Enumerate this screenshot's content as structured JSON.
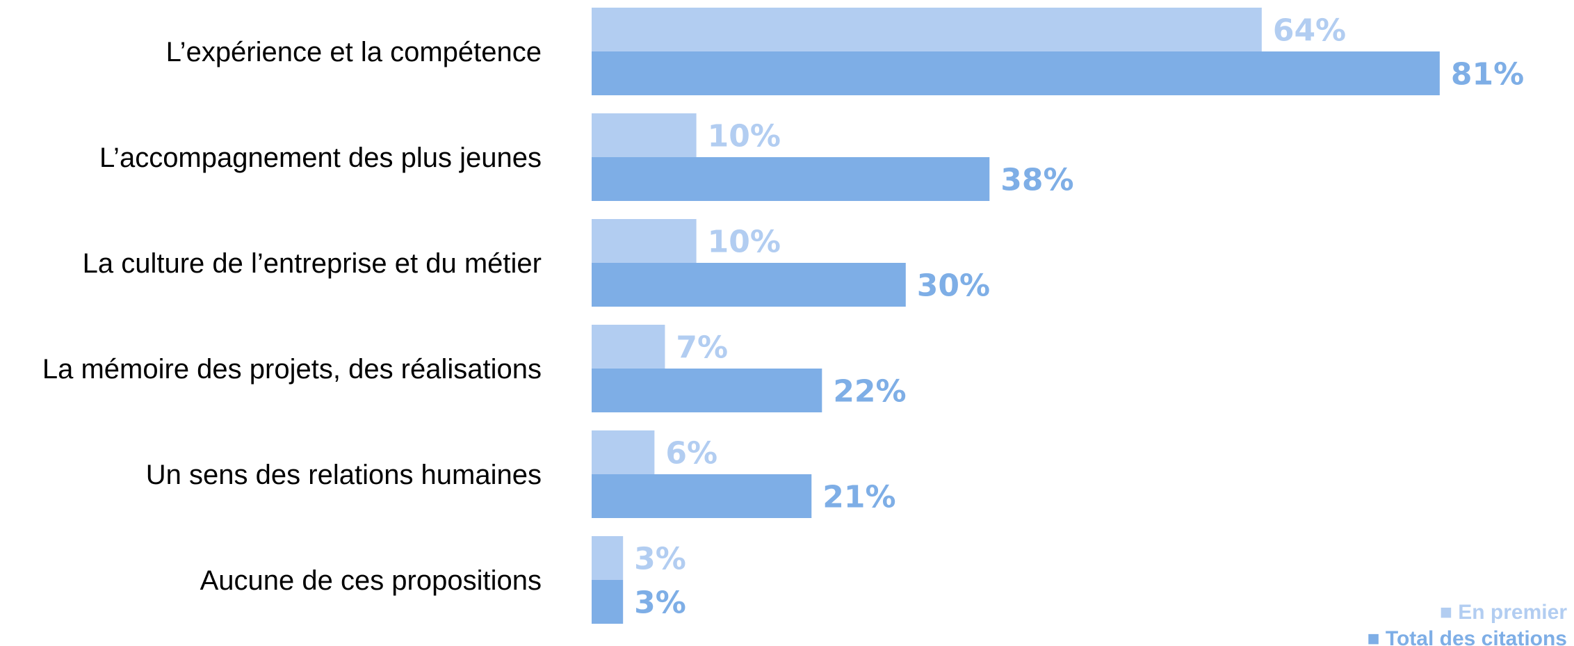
{
  "chart_data": {
    "type": "bar",
    "orientation": "horizontal",
    "categories": [
      "L’expérience et la compétence",
      "L’accompagnement des plus jeunes",
      "La culture de l’entreprise et du métier",
      "La mémoire des projets, des réalisations",
      "Un sens des relations humaines",
      "Aucune de ces propositions"
    ],
    "series": [
      {
        "name": "En premier",
        "values": [
          64,
          10,
          10,
          7,
          6,
          3
        ],
        "labels": [
          "64%",
          "10%",
          "10%",
          "7%",
          "6%",
          "3%"
        ],
        "color": "#b2cdf1"
      },
      {
        "name": "Total des citations",
        "values": [
          81,
          38,
          30,
          22,
          21,
          3
        ],
        "labels": [
          "81%",
          "38%",
          "30%",
          "22%",
          "21%",
          "3%"
        ],
        "color": "#7eaee6"
      }
    ],
    "xlim": [
      0,
      100
    ],
    "grid": false,
    "legend_position": "bottom-right",
    "legend_marker": "■"
  }
}
